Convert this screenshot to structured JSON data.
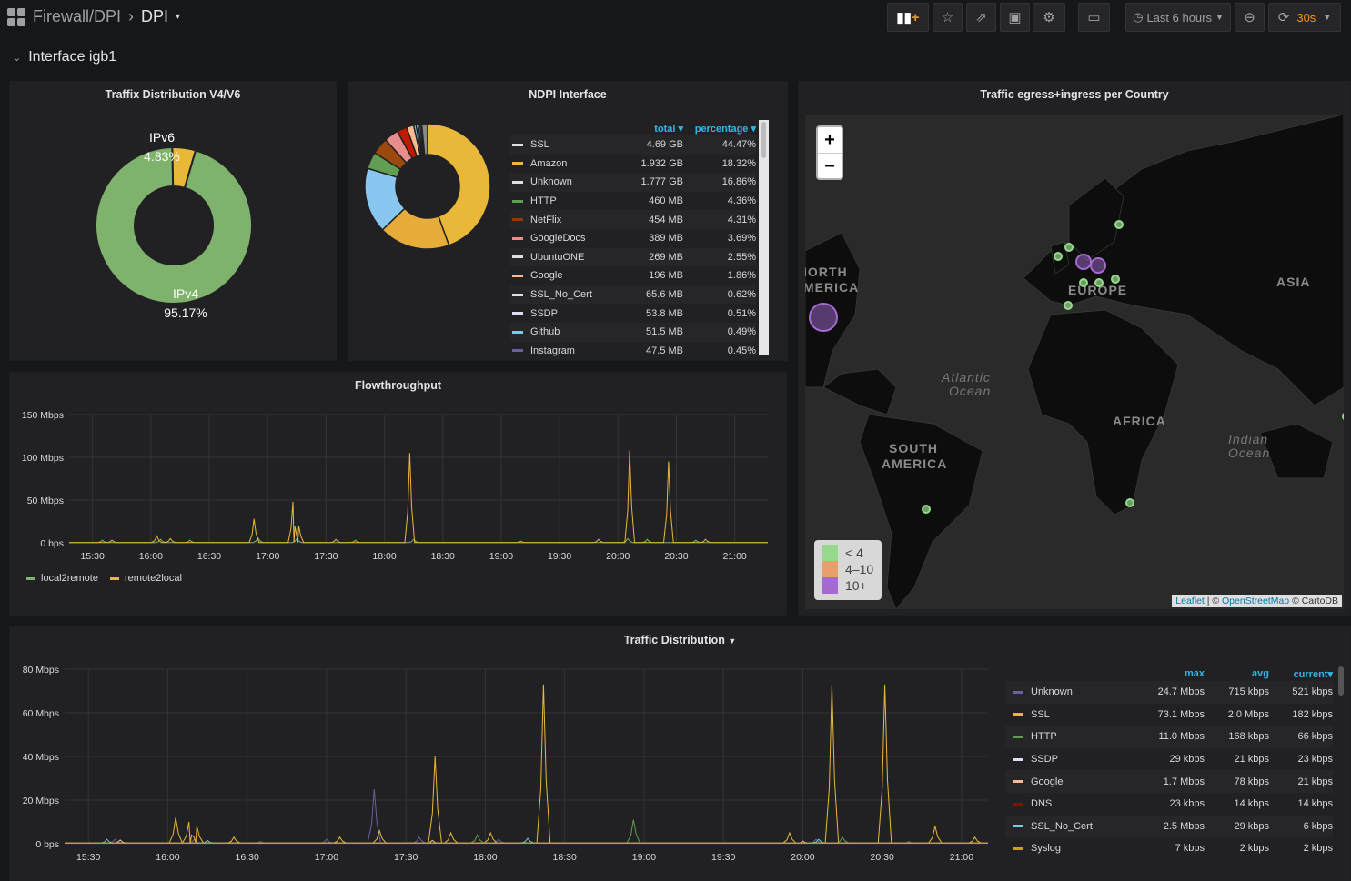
{
  "nav": {
    "breadcrumb_folder": "Firewall/DPI",
    "dashboard_title": "DPI",
    "time_range": "Last 6 hours",
    "refresh": "30s",
    "buttons": [
      "add-panel-icon",
      "star-icon",
      "share-icon",
      "save-icon",
      "gear-icon",
      "tv-icon",
      "clock-icon",
      "zoom-out-icon",
      "refresh-icon"
    ]
  },
  "row": {
    "title": "Interface igb1"
  },
  "panel_v4v6": {
    "title": "Traffix Distribution V4/V6",
    "slices": [
      {
        "label": "IPv6",
        "value": "4.83%",
        "pct": 4.83,
        "color": "#eab839"
      },
      {
        "label": "IPv4",
        "value": "95.17%",
        "pct": 95.17,
        "color": "#7eb26d"
      }
    ]
  },
  "panel_ndpi": {
    "title": "NDPI Interface",
    "col_total": "total",
    "col_pct": "percentage",
    "items": [
      {
        "name": "SSL",
        "total": "4.69 GB",
        "pct": "44.47%",
        "v": 44.47,
        "color": "#e0e0e0",
        "slice": "#eab839"
      },
      {
        "name": "Amazon",
        "total": "1.932 GB",
        "pct": "18.32%",
        "v": 18.32,
        "color": "#eab839",
        "slice": "#e5ac3a"
      },
      {
        "name": "Unknown",
        "total": "1.777 GB",
        "pct": "16.86%",
        "v": 16.86,
        "color": "#e0e0e0",
        "slice": "#8ac7f0"
      },
      {
        "name": "HTTP",
        "total": "460 MB",
        "pct": "4.36%",
        "v": 4.36,
        "color": "#629e51",
        "slice": "#629e51"
      },
      {
        "name": "NetFlix",
        "total": "454 MB",
        "pct": "4.31%",
        "v": 4.31,
        "color": "#8f3b00",
        "slice": "#9a4a0c"
      },
      {
        "name": "GoogleDocs",
        "total": "389 MB",
        "pct": "3.69%",
        "v": 3.69,
        "color": "#e88c8c",
        "slice": "#e88c8c"
      },
      {
        "name": "UbuntuONE",
        "total": "269 MB",
        "pct": "2.55%",
        "v": 2.55,
        "color": "#e0e0e0",
        "slice": "#bf1b00"
      },
      {
        "name": "Google",
        "total": "196 MB",
        "pct": "1.86%",
        "v": 1.86,
        "color": "#f9ba8f",
        "slice": "#f9ba8f"
      },
      {
        "name": "SSL_No_Cert",
        "total": "65.6 MB",
        "pct": "0.62%",
        "v": 0.62,
        "color": "#e0e0e0",
        "slice": "#6ed0e0"
      },
      {
        "name": "SSDP",
        "total": "53.8 MB",
        "pct": "0.51%",
        "v": 0.51,
        "color": "#dedaf7",
        "slice": "#dedaf7"
      },
      {
        "name": "Github",
        "total": "51.5 MB",
        "pct": "0.49%",
        "v": 0.49,
        "color": "#6ed0e0",
        "slice": "#6ed0e0"
      },
      {
        "name": "Instagram",
        "total": "47.5 MB",
        "pct": "0.45%",
        "v": 0.45,
        "color": "#705da0",
        "slice": "#705da0"
      }
    ]
  },
  "panel_map": {
    "title": "Traffic egress+ingress per Country",
    "zoom_in": "+",
    "zoom_out": "−",
    "labels": [
      "IORTH",
      "MERICA",
      "EUROPE",
      "ASIA",
      "AFRICA",
      "SOUTH",
      "AMERICA",
      "Atlantic",
      "Ocean",
      "Indian",
      "Ocean"
    ],
    "legend": [
      {
        "label": "< 4",
        "color": "#96d98d"
      },
      {
        "label": "4–10",
        "color": "#e8a06a"
      },
      {
        "label": "10+",
        "color": "#a36ad0"
      }
    ],
    "attribution": {
      "leaflet": "Leaflet",
      "sep": " | © ",
      "osm": "OpenStreetMap",
      "carto": " © CartoDB"
    }
  },
  "chart_data": [
    {
      "type": "line",
      "title": "Flowthroughput",
      "ylim": [
        0,
        150
      ],
      "yticks": [
        "0 bps",
        "50 Mbps",
        "100 Mbps",
        "150 Mbps"
      ],
      "ytick_values": [
        0,
        50,
        100,
        150
      ],
      "xrange": [
        "15:18",
        "21:17"
      ],
      "xticks": [
        "15:30",
        "16:00",
        "16:30",
        "17:00",
        "17:30",
        "18:00",
        "18:30",
        "19:00",
        "19:30",
        "20:00",
        "20:30",
        "21:00"
      ],
      "legend_position": "bottom-left",
      "unit": "Mbps",
      "series": [
        {
          "name": "local2remote",
          "color": "#7eb26d",
          "spikes": [
            [
              "15:35",
              3
            ],
            [
              "16:05",
              4
            ],
            [
              "16:20",
              3
            ],
            [
              "16:55",
              6
            ],
            [
              "17:15",
              5
            ],
            [
              "17:45",
              3
            ],
            [
              "18:15",
              4
            ],
            [
              "19:10",
              2
            ],
            [
              "20:05",
              5
            ],
            [
              "20:15",
              4
            ],
            [
              "20:40",
              3
            ]
          ]
        },
        {
          "name": "remote2local",
          "color": "#eab839",
          "spikes": [
            [
              "15:40",
              3
            ],
            [
              "16:03",
              8
            ],
            [
              "16:10",
              5
            ],
            [
              "16:53",
              28
            ],
            [
              "17:13",
              48
            ],
            [
              "17:16",
              20
            ],
            [
              "17:35",
              4
            ],
            [
              "18:13",
              105
            ],
            [
              "19:50",
              4
            ],
            [
              "20:06",
              108
            ],
            [
              "20:26",
              95
            ],
            [
              "20:45",
              4
            ]
          ]
        }
      ]
    },
    {
      "type": "line",
      "title": "Traffic Distribution",
      "ylim": [
        0,
        80
      ],
      "yticks": [
        "0 bps",
        "20 Mbps",
        "40 Mbps",
        "60 Mbps",
        "80 Mbps"
      ],
      "ytick_values": [
        0,
        20,
        40,
        60,
        80
      ],
      "xrange": [
        "15:21",
        "21:10"
      ],
      "xticks": [
        "15:30",
        "16:00",
        "16:30",
        "17:00",
        "17:30",
        "18:00",
        "18:30",
        "19:00",
        "19:30",
        "20:00",
        "20:30",
        "21:00"
      ],
      "legend_position": "right",
      "unit": "Mbps",
      "col_max": "max",
      "col_avg": "avg",
      "col_current": "current",
      "series": [
        {
          "name": "Unknown",
          "color": "#705da0",
          "max": "24.7 Mbps",
          "avg": "715 kbps",
          "current": "521 kbps",
          "spikes": [
            [
              "15:40",
              2
            ],
            [
              "16:10",
              2
            ],
            [
              "16:35",
              1
            ],
            [
              "17:00",
              2
            ],
            [
              "17:18",
              25
            ],
            [
              "17:35",
              3
            ],
            [
              "18:05",
              2
            ],
            [
              "20:05",
              2
            ],
            [
              "20:40",
              1
            ]
          ]
        },
        {
          "name": "SSL",
          "color": "#eab839",
          "max": "73.1 Mbps",
          "avg": "2.0 Mbps",
          "current": "182 kbps",
          "spikes": [
            [
              "16:03",
              12
            ],
            [
              "16:08",
              10
            ],
            [
              "16:11",
              8
            ],
            [
              "16:25",
              3
            ],
            [
              "17:05",
              3
            ],
            [
              "17:20",
              6
            ],
            [
              "17:41",
              40
            ],
            [
              "17:47",
              5
            ],
            [
              "18:02",
              5
            ],
            [
              "18:22",
              73
            ],
            [
              "19:55",
              5
            ],
            [
              "20:11",
              73
            ],
            [
              "20:31",
              73
            ],
            [
              "20:50",
              8
            ],
            [
              "21:05",
              3
            ]
          ]
        },
        {
          "name": "HTTP",
          "color": "#629e51",
          "max": "11.0 Mbps",
          "avg": "168 kbps",
          "current": "66 kbps",
          "spikes": [
            [
              "17:57",
              4
            ],
            [
              "18:56",
              11
            ],
            [
              "20:15",
              3
            ]
          ]
        },
        {
          "name": "SSDP",
          "color": "#dedaf7",
          "max": "29 kbps",
          "avg": "21 kbps",
          "current": "23 kbps",
          "spikes": []
        },
        {
          "name": "Google",
          "color": "#f9ba8f",
          "max": "1.7 Mbps",
          "avg": "78 kbps",
          "current": "21 kbps",
          "spikes": [
            [
              "15:42",
              1.7
            ],
            [
              "17:40",
              1.5
            ],
            [
              "20:00",
              1.2
            ]
          ]
        },
        {
          "name": "DNS",
          "color": "#890f02",
          "max": "23 kbps",
          "avg": "14 kbps",
          "current": "14 kbps",
          "spikes": []
        },
        {
          "name": "SSL_No_Cert",
          "color": "#6ed0e0",
          "max": "2.5 Mbps",
          "avg": "29 kbps",
          "current": "6 kbps",
          "spikes": [
            [
              "15:37",
              2
            ],
            [
              "16:15",
              1.5
            ],
            [
              "18:16",
              2.5
            ],
            [
              "20:06",
              2
            ]
          ]
        },
        {
          "name": "Syslog",
          "color": "#cca300",
          "max": "7 kbps",
          "avg": "2 kbps",
          "current": "2 kbps",
          "spikes": []
        }
      ]
    }
  ]
}
